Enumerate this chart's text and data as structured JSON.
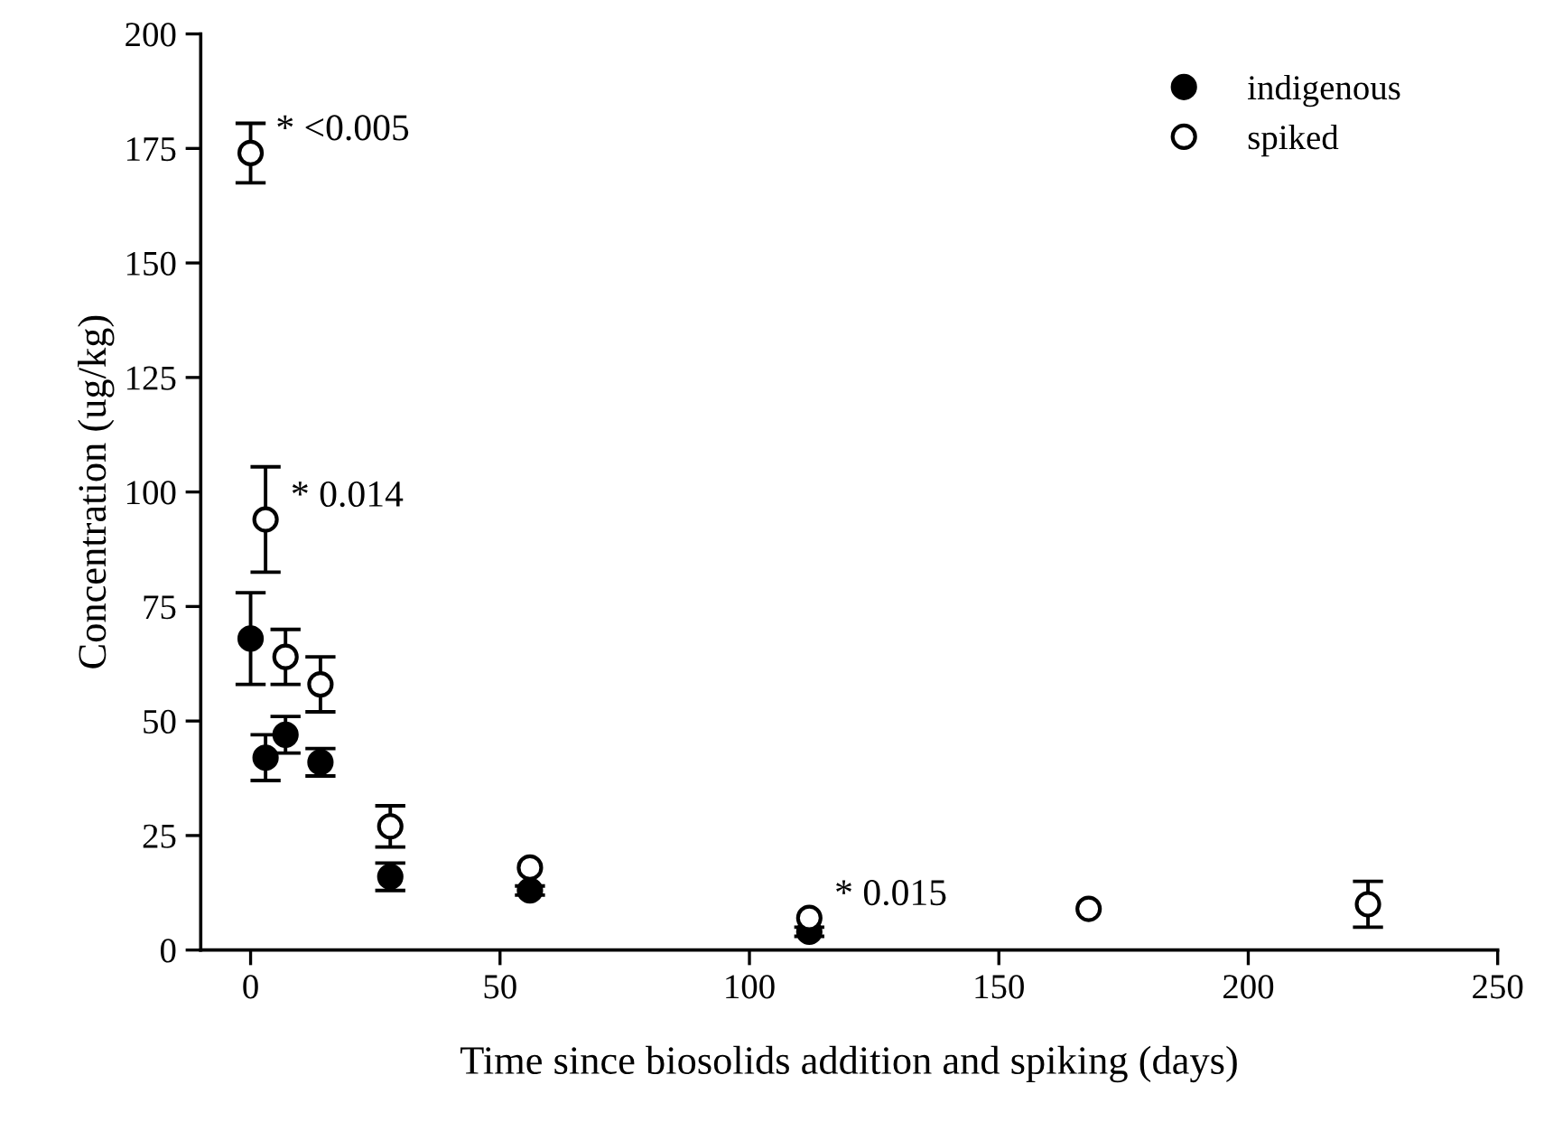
{
  "chart_data": {
    "type": "scatter",
    "xlabel": "Time since biosolids addition and spiking (days)",
    "ylabel": "Concentration (ug/kg)",
    "xlim": [
      -10,
      250
    ],
    "xticks": [
      0,
      50,
      100,
      150,
      200,
      250
    ],
    "ylim": [
      0,
      200
    ],
    "yticks": [
      0,
      25,
      50,
      75,
      100,
      125,
      150,
      175,
      200
    ],
    "grid": false,
    "legend": "top right",
    "marker": "circle",
    "series": [
      {
        "name": "indigenous",
        "color": "#000000",
        "x": [
          0,
          3,
          7,
          14,
          28,
          56,
          112
        ],
        "values": [
          68,
          42,
          47,
          41,
          16,
          13,
          4
        ],
        "errors": [
          10,
          5,
          4,
          3,
          3,
          1,
          1
        ]
      },
      {
        "name": "spiked",
        "color": "#ffffff",
        "x": [
          0,
          3,
          7,
          14,
          28,
          56,
          112,
          168,
          224
        ],
        "values": [
          174,
          94,
          64,
          58,
          27,
          18,
          7,
          9,
          10
        ],
        "errors": [
          6.5,
          11.5,
          6,
          6,
          4.5,
          null,
          null,
          null,
          5
        ]
      }
    ],
    "annotations": [
      {
        "text": "* <0.005",
        "x": 0,
        "y": 174
      },
      {
        "text": "* 0.014",
        "x": 3,
        "y": 94
      },
      {
        "text": "* 0.015",
        "x": 112,
        "y": 7
      }
    ]
  }
}
